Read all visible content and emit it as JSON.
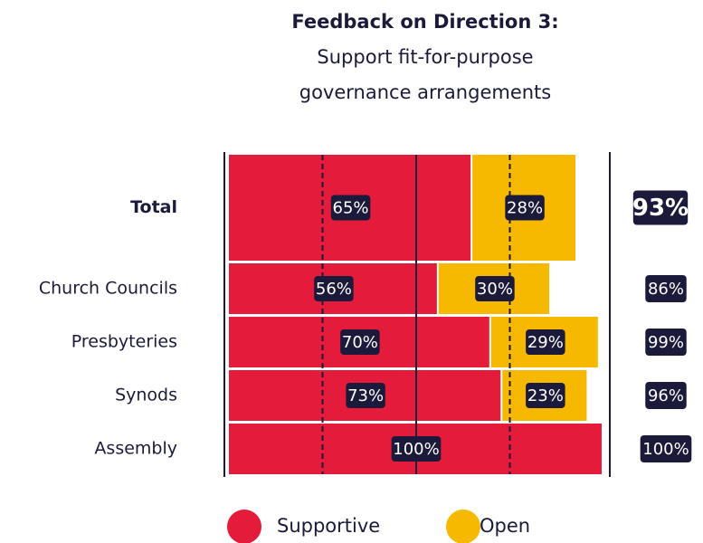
{
  "chart_data": {
    "type": "stacked-bar-horizontal",
    "title": "Feedback on Direction 3:",
    "subtitle": [
      "Support fit-for-purpose",
      "governance arrangements"
    ],
    "categories": [
      "Total",
      "Church Councils",
      "Presbyteries",
      "Synods",
      "Assembly"
    ],
    "series": [
      {
        "name": "Supportive",
        "color": "#e41b3a",
        "values": [
          65,
          56,
          70,
          73,
          100
        ],
        "value_labels": [
          "65%",
          "56%",
          "70%",
          "73%",
          "100%"
        ]
      },
      {
        "name": "Open",
        "color": "#f7b900",
        "values": [
          28,
          30,
          29,
          23,
          null
        ],
        "value_labels": [
          "28%",
          "30%",
          "29%",
          "23%",
          null
        ]
      }
    ],
    "totals": [
      93,
      86,
      99,
      96,
      100
    ],
    "total_labels": [
      "93%",
      "86%",
      "99%",
      "96%",
      "100%"
    ],
    "xlim": [
      0,
      100
    ],
    "xticks": [
      25,
      50,
      75
    ],
    "grid": true
  }
}
